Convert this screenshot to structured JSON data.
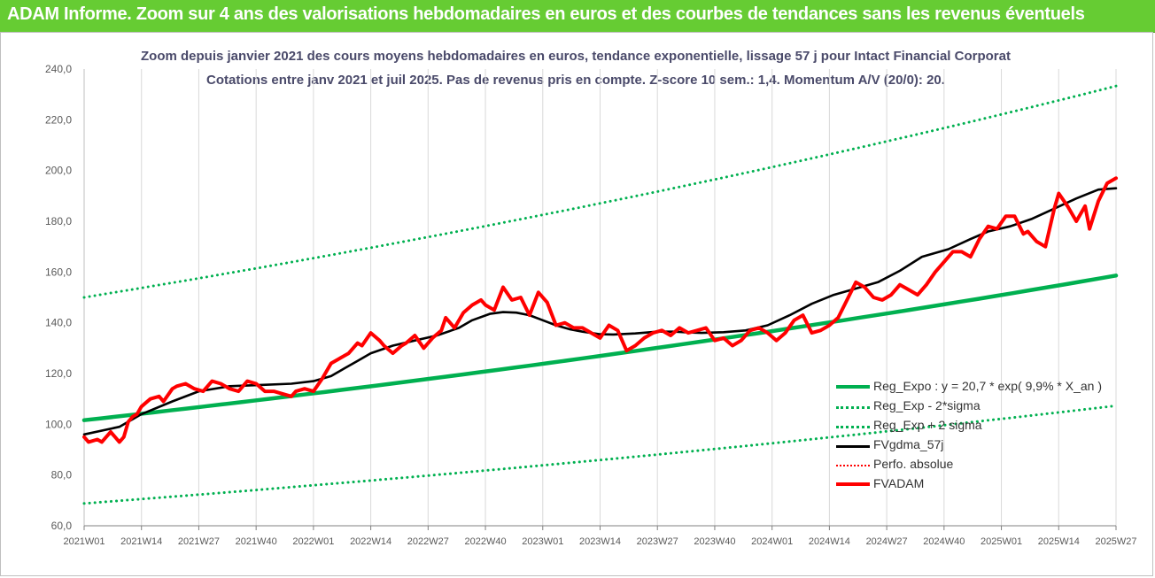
{
  "banner": {
    "title": "ADAM Informe. Zoom sur 4 ans des valorisations hebdomadaires en euros et des courbes de tendances sans les revenus éventuels"
  },
  "chart_data": {
    "type": "line",
    "title": "Zoom depuis janvier 2021 des cours moyens hebdomadaires en euros, tendance exponentielle, lissage 57 j pour Intact Financial Corporat",
    "subtitle": "Cotations entre janv 2021 et juil 2025. Pas de revenus pris en compte. Z-score 10 sem.: 1,4. Momentum A/V (20/0): 20.",
    "xlabel": "",
    "ylabel": "",
    "ylim": [
      60,
      240
    ],
    "yticks": [
      "60,0",
      "80,0",
      "100,0",
      "120,0",
      "140,0",
      "160,0",
      "180,0",
      "200,0",
      "220,0",
      "240,0"
    ],
    "x_ticks": [
      "2021W01",
      "2021W14",
      "2021W27",
      "2021W40",
      "2022W01",
      "2022W14",
      "2022W27",
      "2022W40",
      "2023W01",
      "2023W14",
      "2023W27",
      "2023W40",
      "2024W01",
      "2024W14",
      "2024W27",
      "2024W40",
      "2025W01",
      "2025W14",
      "2025W27"
    ],
    "x_range_weeks": [
      0,
      234
    ],
    "grid": "vertical",
    "legend_position": "bottom-right",
    "series": [
      {
        "name": "Reg_Expo : y = 20,7 * exp( 9,9% *  X_an )",
        "color": "#00b050",
        "style": "solid",
        "x": [
          0,
          234
        ],
        "values": [
          101.6,
          158.6
        ]
      },
      {
        "name": "Reg_Exp - 2*sigma",
        "color": "#00b050",
        "style": "dotted",
        "x": [
          0,
          234
        ],
        "values": [
          68.8,
          107.3
        ]
      },
      {
        "name": "Reg_Exp + 2 sigma",
        "color": "#00b050",
        "style": "dotted",
        "x": [
          0,
          234
        ],
        "values": [
          150.0,
          233.3
        ]
      },
      {
        "name": "FVgdma_57j",
        "color": "#000000",
        "style": "solid",
        "x": [
          0,
          8,
          13,
          20,
          26,
          33,
          40,
          47,
          52,
          56,
          59,
          62,
          65,
          70,
          75,
          80,
          85,
          88,
          92,
          95,
          98,
          101,
          104,
          107,
          110,
          113,
          117,
          120,
          125,
          130,
          134,
          137,
          140,
          145,
          150,
          155,
          160,
          165,
          170,
          175,
          180,
          185,
          190,
          196,
          201,
          205,
          210,
          215,
          220,
          225,
          230,
          234
        ],
        "values": [
          96.0,
          99.0,
          104.0,
          109.0,
          113.0,
          115.0,
          115.5,
          116.0,
          117.0,
          119.0,
          122.0,
          125.0,
          128.0,
          131.0,
          133.0,
          135.0,
          138.0,
          141.0,
          143.5,
          144.2,
          144.0,
          143.0,
          141.0,
          139.0,
          137.5,
          136.5,
          135.5,
          135.4,
          135.8,
          136.5,
          136.5,
          136.2,
          136.0,
          136.3,
          137.0,
          139.0,
          143.0,
          147.5,
          151.0,
          153.5,
          156.0,
          160.5,
          166.0,
          169.0,
          173.0,
          176.0,
          178.0,
          181.0,
          185.0,
          189.0,
          192.5,
          193.0
        ]
      },
      {
        "name": "Perfo. absolue",
        "color": "#ff0000",
        "style": "dotted",
        "x": [],
        "values": []
      },
      {
        "name": "FVADAM",
        "color": "#ff0000",
        "style": "solid",
        "x": [
          0,
          1,
          3,
          4,
          6,
          8,
          9,
          10,
          11,
          12,
          13,
          15,
          17,
          18,
          20,
          21,
          23,
          25,
          27,
          29,
          31,
          33,
          35,
          37,
          39,
          41,
          43,
          45,
          47,
          48,
          50,
          52,
          54,
          56,
          58,
          60,
          62,
          63,
          65,
          67,
          68,
          70,
          72,
          73,
          75,
          77,
          79,
          81,
          82,
          84,
          86,
          88,
          90,
          91,
          93,
          95,
          97,
          99,
          101,
          103,
          105,
          107,
          109,
          111,
          113,
          115,
          117,
          119,
          121,
          123,
          125,
          127,
          129,
          131,
          133,
          135,
          137,
          139,
          141,
          143,
          145,
          147,
          149,
          151,
          153,
          155,
          157,
          159,
          161,
          163,
          165,
          167,
          169,
          171,
          173,
          175,
          177,
          179,
          181,
          183,
          185,
          187,
          189,
          191,
          193,
          195,
          197,
          199,
          201,
          203,
          205,
          207,
          209,
          211,
          213,
          214,
          216,
          218,
          220,
          221,
          223,
          225,
          227,
          228,
          230,
          232,
          234
        ],
        "values": [
          95.0,
          93.0,
          94.0,
          93.0,
          97.0,
          93.0,
          95.0,
          101.0,
          103.0,
          104.0,
          107.0,
          110.0,
          111.0,
          109.0,
          114.0,
          115.0,
          116.0,
          114.0,
          113.0,
          117.0,
          116.0,
          114.0,
          113.0,
          117.0,
          116.0,
          113.0,
          113.0,
          112.0,
          111.0,
          113.0,
          114.0,
          113.0,
          118.0,
          124.0,
          126.0,
          128.0,
          132.0,
          131.0,
          136.0,
          133.0,
          131.0,
          128.0,
          131.0,
          132.0,
          135.0,
          130.0,
          134.0,
          137.0,
          142.0,
          138.0,
          144.0,
          147.0,
          149.0,
          147.0,
          145.0,
          154.0,
          149.0,
          150.0,
          143.0,
          152.0,
          148.0,
          139.0,
          140.0,
          138.0,
          138.0,
          136.0,
          134.0,
          139.0,
          137.0,
          129.0,
          131.0,
          134.0,
          136.0,
          137.0,
          135.0,
          138.0,
          136.0,
          137.0,
          138.0,
          133.0,
          134.0,
          131.0,
          133.0,
          137.0,
          138.0,
          136.0,
          133.0,
          136.0,
          141.0,
          143.0,
          136.0,
          137.0,
          139.0,
          142.0,
          149.0,
          156.0,
          154.0,
          150.0,
          149.0,
          151.0,
          155.0,
          153.0,
          151.0,
          155.0,
          160.0,
          164.0,
          168.0,
          168.0,
          166.0,
          173.0,
          178.0,
          177.0,
          182.0,
          182.0,
          175.0,
          176.0,
          172.0,
          170.0,
          185.0,
          191.0,
          186.0,
          180.0,
          186.0,
          177.0,
          188.0,
          195.0,
          197.0
        ]
      }
    ]
  }
}
